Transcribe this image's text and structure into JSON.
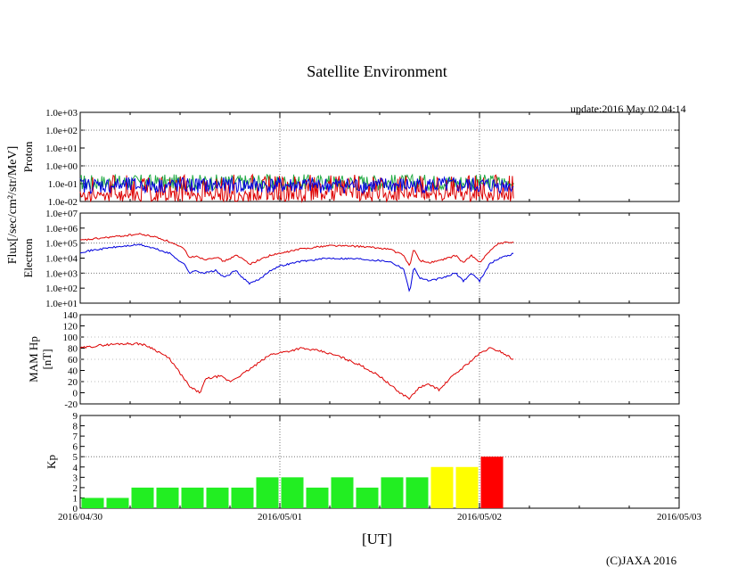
{
  "title": "Satellite Environment",
  "update": "update:2016 May 02 04:14",
  "xlabel": "[UT]",
  "copyright": "(C)JAXA 2016",
  "flux_label": "Flux[/sec/cm²/str/MeV]",
  "x_ticks": [
    "2016/04/30",
    "2016/05/01",
    "2016/05/02",
    "2016/05/03"
  ],
  "chart_data": [
    {
      "name": "proton",
      "type": "line",
      "ylabel": "Proton",
      "log": true,
      "ylim": [
        0.01,
        1000
      ],
      "yticks": [
        "1.0e-02",
        "1.0e-01",
        "1.0e+00",
        "1.0e+01",
        "1.0e+02",
        "1.0e+03"
      ],
      "xlim": [
        0,
        3
      ],
      "note": "noisy flux near 1e-1 from 2016/04/30 to ~2016/05/02 06:00",
      "series": [
        {
          "name": "green",
          "color": "#22aa44",
          "x": [
            0,
            0.5,
            1.0,
            1.5,
            2.0,
            2.17
          ],
          "y": [
            0.12,
            0.13,
            0.12,
            0.13,
            0.12,
            0.12
          ]
        },
        {
          "name": "red",
          "color": "#dd0000",
          "x": [
            0,
            0.5,
            1.0,
            1.5,
            2.0,
            2.17
          ],
          "y": [
            0.02,
            0.02,
            0.02,
            0.02,
            0.02,
            0.02
          ]
        },
        {
          "name": "blue",
          "color": "#0000dd",
          "x": [
            0,
            0.5,
            1.0,
            1.5,
            2.0,
            2.17
          ],
          "y": [
            0.08,
            0.09,
            0.08,
            0.09,
            0.08,
            0.08
          ]
        }
      ]
    },
    {
      "name": "electron",
      "type": "line",
      "ylabel": "Electron",
      "log": true,
      "ylim": [
        10,
        10000000
      ],
      "yticks": [
        "1.0e+01",
        "1.0e+02",
        "1.0e+03",
        "1.0e+04",
        "1.0e+05",
        "1.0e+06",
        "1.0e+07"
      ],
      "xlim": [
        0,
        3
      ],
      "series": [
        {
          "name": "red",
          "color": "#dd0000",
          "x": [
            0,
            0.15,
            0.3,
            0.38,
            0.45,
            0.52,
            0.55,
            0.58,
            0.62,
            0.68,
            0.72,
            0.78,
            0.82,
            0.85,
            0.9,
            0.95,
            1.0,
            1.1,
            1.25,
            1.4,
            1.55,
            1.62,
            1.65,
            1.67,
            1.7,
            1.75,
            1.82,
            1.88,
            1.92,
            1.96,
            2.0,
            2.05,
            2.1,
            2.17
          ],
          "y": [
            150000,
            250000,
            400000,
            250000,
            120000,
            40000,
            10000,
            15000,
            8000,
            12000,
            6000,
            15000,
            8000,
            4000,
            8000,
            15000,
            20000,
            40000,
            70000,
            60000,
            40000,
            15000,
            3000,
            40000,
            7000,
            5000,
            8000,
            15000,
            5000,
            15000,
            5000,
            30000,
            100000,
            120000
          ]
        },
        {
          "name": "blue",
          "color": "#0000dd",
          "x": [
            0,
            0.15,
            0.3,
            0.38,
            0.45,
            0.52,
            0.55,
            0.58,
            0.62,
            0.68,
            0.72,
            0.78,
            0.82,
            0.85,
            0.9,
            0.95,
            1.0,
            1.1,
            1.25,
            1.4,
            1.55,
            1.62,
            1.65,
            1.67,
            1.7,
            1.75,
            1.82,
            1.88,
            1.92,
            1.96,
            2.0,
            2.05,
            2.1,
            2.17
          ],
          "y": [
            25000,
            50000,
            80000,
            40000,
            20000,
            4000,
            1000,
            1500,
            1000,
            1500,
            500,
            1500,
            400,
            200,
            400,
            1500,
            3000,
            6000,
            10000,
            9000,
            6000,
            2000,
            50,
            2500,
            500,
            300,
            500,
            1000,
            300,
            1000,
            300,
            4000,
            10000,
            20000
          ]
        }
      ]
    },
    {
      "name": "mam_hp",
      "type": "line",
      "ylabel": "MAM Hp",
      "ylabel2": "[nT]",
      "ylim": [
        -20,
        140
      ],
      "yticks": [
        "-20",
        "0",
        "20",
        "40",
        "60",
        "80",
        "100",
        "120",
        "140"
      ],
      "xlim": [
        0,
        3
      ],
      "series": [
        {
          "name": "red",
          "color": "#dd0000",
          "x": [
            0,
            0.1,
            0.2,
            0.3,
            0.35,
            0.4,
            0.45,
            0.5,
            0.55,
            0.6,
            0.63,
            0.7,
            0.75,
            0.82,
            0.9,
            0.95,
            1.0,
            1.05,
            1.1,
            1.2,
            1.3,
            1.4,
            1.5,
            1.55,
            1.6,
            1.65,
            1.7,
            1.75,
            1.8,
            1.85,
            1.9,
            1.95,
            2.0,
            2.05,
            2.1,
            2.17
          ],
          "y": [
            80,
            85,
            88,
            88,
            82,
            72,
            60,
            35,
            10,
            0,
            25,
            30,
            20,
            35,
            55,
            68,
            72,
            75,
            80,
            75,
            65,
            50,
            30,
            15,
            0,
            -10,
            10,
            15,
            5,
            25,
            40,
            55,
            70,
            80,
            75,
            60
          ]
        }
      ]
    },
    {
      "name": "kp",
      "type": "bar",
      "ylabel": "Kp",
      "ylim": [
        0,
        9
      ],
      "yticks": [
        "0",
        "1",
        "2",
        "3",
        "4",
        "5",
        "6",
        "7",
        "8",
        "9"
      ],
      "xlim": [
        0,
        3
      ],
      "bar_width_days": 0.125,
      "starts": [
        0,
        0.125,
        0.25,
        0.375,
        0.5,
        0.625,
        0.75,
        0.875,
        1.0,
        1.125,
        1.25,
        1.375,
        1.5,
        1.625,
        1.75,
        1.875,
        2.0
      ],
      "values": [
        1,
        1,
        2,
        2,
        2,
        2,
        2,
        3,
        3,
        2,
        3,
        2,
        3,
        3,
        4,
        4,
        5
      ],
      "colors": [
        "#22ee22",
        "#22ee22",
        "#22ee22",
        "#22ee22",
        "#22ee22",
        "#22ee22",
        "#22ee22",
        "#22ee22",
        "#22ee22",
        "#22ee22",
        "#22ee22",
        "#22ee22",
        "#22ee22",
        "#22ee22",
        "#ffff00",
        "#ffff00",
        "#ff0000"
      ]
    }
  ]
}
